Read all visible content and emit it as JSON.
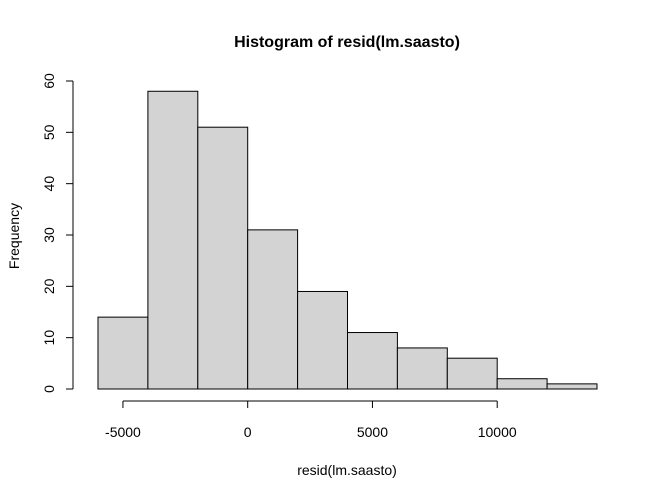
{
  "chart_data": {
    "type": "bar",
    "title": "Histogram of resid(lm.saasto)",
    "xlabel": "resid(lm.saasto)",
    "ylabel": "Frequency",
    "bins": [
      {
        "start": -6000,
        "end": -4000,
        "value": 14
      },
      {
        "start": -4000,
        "end": -2000,
        "value": 58
      },
      {
        "start": -2000,
        "end": 0,
        "value": 51
      },
      {
        "start": 0,
        "end": 2000,
        "value": 31
      },
      {
        "start": 2000,
        "end": 4000,
        "value": 19
      },
      {
        "start": 4000,
        "end": 6000,
        "value": 11
      },
      {
        "start": 6000,
        "end": 8000,
        "value": 8
      },
      {
        "start": 8000,
        "end": 10000,
        "value": 6
      },
      {
        "start": 10000,
        "end": 12000,
        "value": 2
      },
      {
        "start": 12000,
        "end": 14000,
        "value": 1
      }
    ],
    "xlim": [
      -6000,
      14000
    ],
    "ylim": [
      0,
      60
    ],
    "x_ticks": [
      -5000,
      0,
      5000,
      10000
    ],
    "x_tick_labels": [
      "-5000",
      "0",
      "5000",
      "10000"
    ],
    "y_ticks": [
      0,
      10,
      20,
      30,
      40,
      50,
      60
    ],
    "y_tick_labels": [
      "0",
      "10",
      "20",
      "30",
      "40",
      "50",
      "60"
    ],
    "bar_fill": "#d3d3d3",
    "bar_stroke": "#000000",
    "grid": false,
    "legend": "none"
  }
}
